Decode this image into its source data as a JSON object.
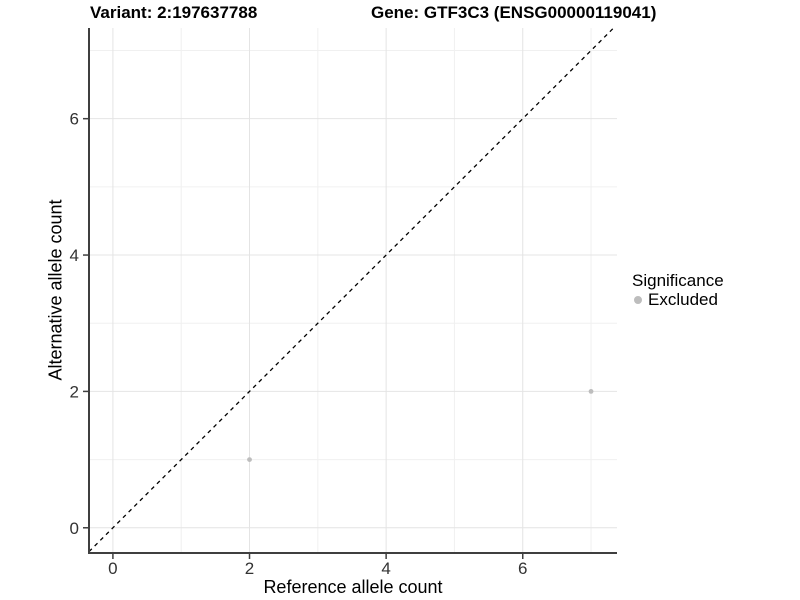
{
  "chart_data": {
    "type": "scatter",
    "titles": {
      "left": "Variant: 2:197637788",
      "right": "Gene: GTF3C3 (ENSG00000119041)"
    },
    "xlabel": "Reference allele count",
    "ylabel": "Alternative allele count",
    "x_ticks": [
      0,
      2,
      4,
      6
    ],
    "y_ticks": [
      0,
      2,
      4,
      6
    ],
    "x_minor_ticks": [
      1,
      3,
      5,
      7
    ],
    "y_minor_ticks": [
      1,
      3,
      5,
      7
    ],
    "xlim": [
      -0.35,
      7.38
    ],
    "ylim": [
      -0.37,
      7.33
    ],
    "grid": "major+minor",
    "legend": {
      "position": "right",
      "title": "Significance",
      "items": [
        {
          "label": "Excluded",
          "color": "#bdbdbd"
        }
      ]
    },
    "series": [
      {
        "name": "Excluded",
        "color": "#bdbdbd",
        "points": [
          [
            2,
            1
          ],
          [
            7,
            2
          ]
        ]
      }
    ],
    "reference_line": {
      "slope": 1,
      "intercept": 0,
      "style": "dashed",
      "color": "#000000"
    },
    "colors": {
      "background": "#ffffff",
      "grid_major": "#e4e4e4",
      "grid_minor": "#f0f0f0",
      "axis_line": "#3f3f3f",
      "tick_text": "#333333",
      "title_text": "#000000"
    }
  }
}
